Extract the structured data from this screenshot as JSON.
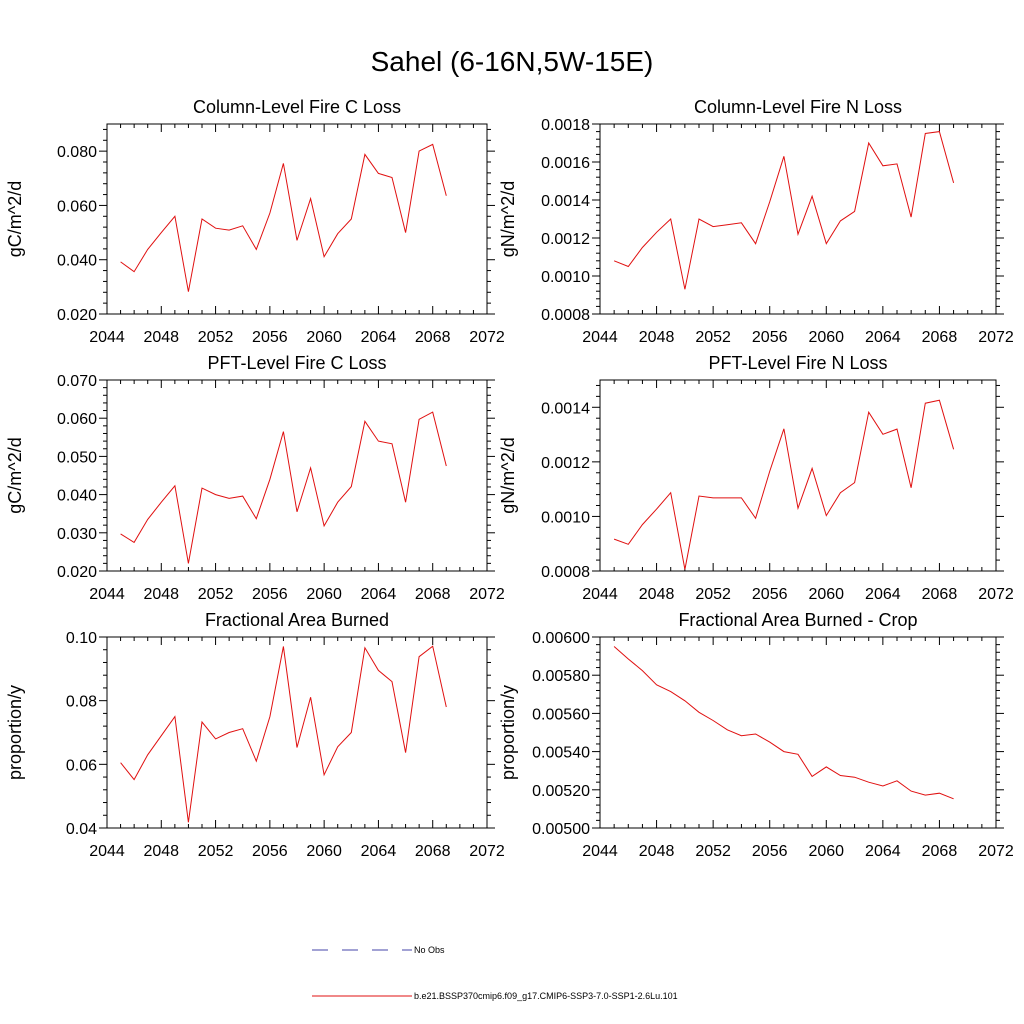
{
  "title": "Sahel (6-16N,5W-15E)",
  "series_color": "#e01010",
  "nobs_color": "#4444aa",
  "legend": {
    "nobs_label": "No Obs",
    "series_label": "b.e21.BSSP370cmip6.f09_g17.CMIP6-SSP3-7.0-SSP1-2.6Lu.101"
  },
  "chart_data": [
    {
      "type": "line",
      "title": "Column-Level Fire C Loss",
      "xlabel": "",
      "ylabel": "gC/m^2/d",
      "xlim": [
        2044,
        2072
      ],
      "ylim": [
        0.02,
        0.09
      ],
      "xticks": [
        2044,
        2048,
        2052,
        2056,
        2060,
        2064,
        2068,
        2072
      ],
      "xticklabels": [
        "2044",
        "2048",
        "2052",
        "2056",
        "2060",
        "2064",
        "2068",
        "2072"
      ],
      "yticks": [
        0.02,
        0.04,
        0.06,
        0.08
      ],
      "yticklabels": [
        "0.020",
        "0.040",
        "0.060",
        "0.080"
      ],
      "x": [
        2045,
        2046,
        2047,
        2048,
        2049,
        2050,
        2051,
        2052,
        2053,
        2054,
        2055,
        2056,
        2057,
        2058,
        2059,
        2060,
        2061,
        2062,
        2063,
        2064,
        2065,
        2066,
        2067,
        2068,
        2069
      ],
      "values": [
        0.0392,
        0.0356,
        0.0438,
        0.05,
        0.056,
        0.0282,
        0.055,
        0.0516,
        0.0509,
        0.0525,
        0.0438,
        0.0572,
        0.0755,
        0.0471,
        0.0625,
        0.0411,
        0.0496,
        0.055,
        0.0788,
        0.0718,
        0.0703,
        0.05,
        0.08,
        0.0825,
        0.0636
      ]
    },
    {
      "type": "line",
      "title": "Column-Level Fire N Loss",
      "xlabel": "",
      "ylabel": "gN/m^2/d",
      "xlim": [
        2044,
        2072
      ],
      "ylim": [
        0.0008,
        0.0018
      ],
      "xticks": [
        2044,
        2048,
        2052,
        2056,
        2060,
        2064,
        2068,
        2072
      ],
      "xticklabels": [
        "2044",
        "2048",
        "2052",
        "2056",
        "2060",
        "2064",
        "2068",
        "2072"
      ],
      "yticks": [
        0.0008,
        0.001,
        0.0012,
        0.0014,
        0.0016,
        0.0018
      ],
      "yticklabels": [
        "0.0008",
        "0.0010",
        "0.0012",
        "0.0014",
        "0.0016",
        "0.0018"
      ],
      "x": [
        2045,
        2046,
        2047,
        2048,
        2049,
        2050,
        2051,
        2052,
        2053,
        2054,
        2055,
        2056,
        2057,
        2058,
        2059,
        2060,
        2061,
        2062,
        2063,
        2064,
        2065,
        2066,
        2067,
        2068,
        2069
      ],
      "values": [
        0.00108,
        0.00105,
        0.00115,
        0.00123,
        0.0013,
        0.00093,
        0.0013,
        0.00126,
        0.00127,
        0.00128,
        0.00117,
        0.00139,
        0.00163,
        0.00122,
        0.00142,
        0.00117,
        0.00129,
        0.00134,
        0.0017,
        0.00158,
        0.00159,
        0.00131,
        0.00175,
        0.00176,
        0.00149
      ]
    },
    {
      "type": "line",
      "title": "PFT-Level Fire C Loss",
      "xlabel": "",
      "ylabel": "gC/m^2/d",
      "xlim": [
        2044,
        2072
      ],
      "ylim": [
        0.02,
        0.07
      ],
      "xticks": [
        2044,
        2048,
        2052,
        2056,
        2060,
        2064,
        2068,
        2072
      ],
      "xticklabels": [
        "2044",
        "2048",
        "2052",
        "2056",
        "2060",
        "2064",
        "2068",
        "2072"
      ],
      "yticks": [
        0.02,
        0.03,
        0.04,
        0.05,
        0.06,
        0.07
      ],
      "yticklabels": [
        "0.020",
        "0.030",
        "0.040",
        "0.050",
        "0.060",
        "0.070"
      ],
      "x": [
        2045,
        2046,
        2047,
        2048,
        2049,
        2050,
        2051,
        2052,
        2053,
        2054,
        2055,
        2056,
        2057,
        2058,
        2059,
        2060,
        2061,
        2062,
        2063,
        2064,
        2065,
        2066,
        2067,
        2068,
        2069
      ],
      "values": [
        0.0297,
        0.0275,
        0.0335,
        0.038,
        0.0423,
        0.022,
        0.0417,
        0.04,
        0.039,
        0.0396,
        0.0337,
        0.044,
        0.0565,
        0.0355,
        0.047,
        0.0318,
        0.038,
        0.0421,
        0.0592,
        0.054,
        0.0533,
        0.038,
        0.0597,
        0.0616,
        0.0475
      ]
    },
    {
      "type": "line",
      "title": "PFT-Level Fire N Loss",
      "xlabel": "",
      "ylabel": "gN/m^2/d",
      "xlim": [
        2044,
        2072
      ],
      "ylim": [
        0.0008,
        0.0015
      ],
      "xticks": [
        2044,
        2048,
        2052,
        2056,
        2060,
        2064,
        2068,
        2072
      ],
      "xticklabels": [
        "2044",
        "2048",
        "2052",
        "2056",
        "2060",
        "2064",
        "2068",
        "2072"
      ],
      "yticks": [
        0.0008,
        0.001,
        0.0012,
        0.0014
      ],
      "yticklabels": [
        "0.0008",
        "0.0010",
        "0.0012",
        "0.0014"
      ],
      "x": [
        2045,
        2046,
        2047,
        2048,
        2049,
        2050,
        2051,
        2052,
        2053,
        2054,
        2055,
        2056,
        2057,
        2058,
        2059,
        2060,
        2061,
        2062,
        2063,
        2064,
        2065,
        2066,
        2067,
        2068,
        2069
      ],
      "values": [
        0.000917,
        0.000898,
        0.00097,
        0.001027,
        0.001087,
        0.000806,
        0.001075,
        0.001068,
        0.001068,
        0.001068,
        0.000993,
        0.001165,
        0.001321,
        0.00103,
        0.001176,
        0.001003,
        0.001087,
        0.001124,
        0.001382,
        0.001301,
        0.00132,
        0.001105,
        0.001415,
        0.001426,
        0.001246
      ]
    },
    {
      "type": "line",
      "title": "Fractional Area Burned",
      "xlabel": "",
      "ylabel": "proportion/y",
      "xlim": [
        2044,
        2072
      ],
      "ylim": [
        0.04,
        0.1
      ],
      "xticks": [
        2044,
        2048,
        2052,
        2056,
        2060,
        2064,
        2068,
        2072
      ],
      "xticklabels": [
        "2044",
        "2048",
        "2052",
        "2056",
        "2060",
        "2064",
        "2068",
        "2072"
      ],
      "yticks": [
        0.04,
        0.06,
        0.08,
        0.1
      ],
      "yticklabels": [
        "0.04",
        "0.06",
        "0.08",
        "0.10"
      ],
      "x": [
        2045,
        2046,
        2047,
        2048,
        2049,
        2050,
        2051,
        2052,
        2053,
        2054,
        2055,
        2056,
        2057,
        2058,
        2059,
        2060,
        2061,
        2062,
        2063,
        2064,
        2065,
        2066,
        2067,
        2068,
        2069
      ],
      "values": [
        0.0605,
        0.0552,
        0.063,
        0.069,
        0.075,
        0.0418,
        0.0733,
        0.068,
        0.07,
        0.0712,
        0.061,
        0.075,
        0.097,
        0.0653,
        0.0811,
        0.0567,
        0.0655,
        0.07,
        0.0966,
        0.0895,
        0.086,
        0.0637,
        0.0938,
        0.0971,
        0.078
      ]
    },
    {
      "type": "line",
      "title": "Fractional Area Burned - Crop",
      "xlabel": "",
      "ylabel": "proportion/y",
      "xlim": [
        2044,
        2072
      ],
      "ylim": [
        0.005,
        0.006
      ],
      "xticks": [
        2044,
        2048,
        2052,
        2056,
        2060,
        2064,
        2068,
        2072
      ],
      "xticklabels": [
        "2044",
        "2048",
        "2052",
        "2056",
        "2060",
        "2064",
        "2068",
        "2072"
      ],
      "yticks": [
        0.005,
        0.0052,
        0.0054,
        0.0056,
        0.0058,
        0.006
      ],
      "yticklabels": [
        "0.00500",
        "0.00520",
        "0.00540",
        "0.00560",
        "0.00580",
        "0.00600"
      ],
      "x": [
        2045,
        2046,
        2047,
        2048,
        2049,
        2050,
        2051,
        2052,
        2053,
        2054,
        2055,
        2056,
        2057,
        2058,
        2059,
        2060,
        2061,
        2062,
        2063,
        2064,
        2065,
        2066,
        2067,
        2068,
        2069
      ],
      "values": [
        0.00595,
        0.005885,
        0.005824,
        0.00575,
        0.005714,
        0.005666,
        0.005606,
        0.005563,
        0.005514,
        0.005483,
        0.005492,
        0.00545,
        0.0054,
        0.005386,
        0.00527,
        0.00532,
        0.005275,
        0.005266,
        0.00524,
        0.00522,
        0.005247,
        0.005193,
        0.005172,
        0.005182,
        0.005153
      ]
    }
  ]
}
